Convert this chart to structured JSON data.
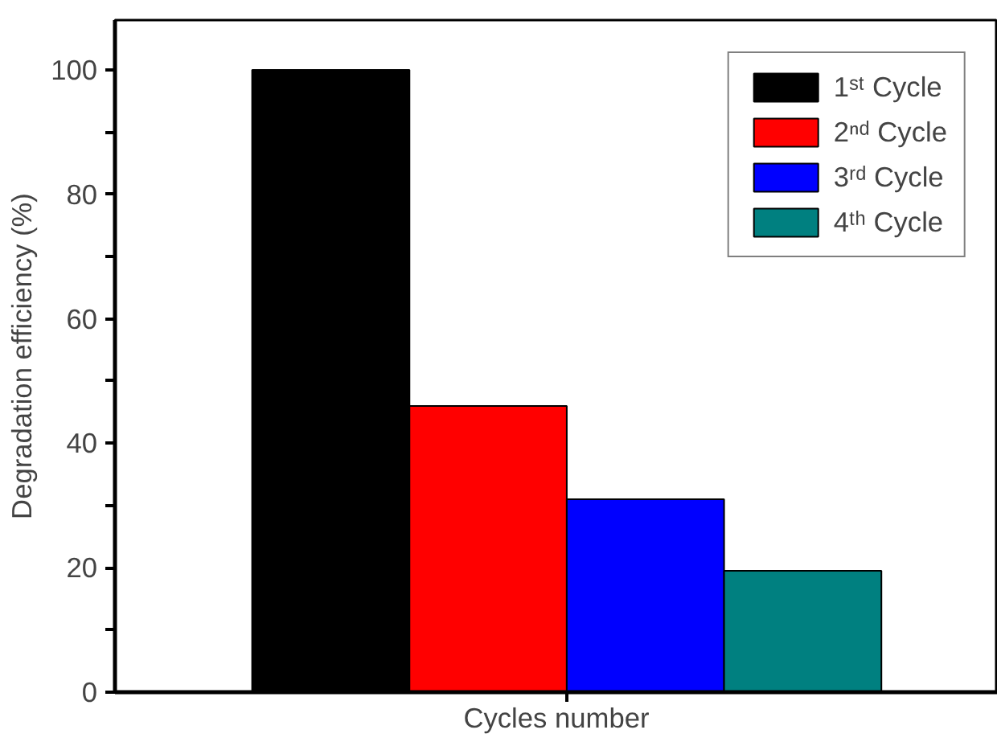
{
  "chart_data": {
    "type": "bar",
    "xlabel": "Cycles number",
    "ylabel": "Degradation efficiency (%)",
    "categories": [
      null
    ],
    "series": [
      {
        "name": "1ˢᵗ Cycle",
        "color": "#000000",
        "values": [
          100
        ]
      },
      {
        "name": "2ⁿᵈ Cycle",
        "color": "#ff0000",
        "values": [
          46
        ]
      },
      {
        "name": "3ʳᵈ Cycle",
        "color": "#0000ff",
        "values": [
          31
        ]
      },
      {
        "name": "4ᵗʰ Cycle",
        "color": "#008080",
        "values": [
          19.5
        ]
      }
    ],
    "ylim": [
      0,
      108
    ],
    "yticks": [
      0,
      {
        "value": 10,
        "label": null
      },
      20,
      {
        "value": 30,
        "label": null
      },
      40,
      {
        "value": 50,
        "label": null
      },
      60,
      {
        "value": 70,
        "label": null
      },
      80,
      {
        "value": 90,
        "label": null
      },
      100
    ],
    "legend": "top right",
    "grid": false
  }
}
